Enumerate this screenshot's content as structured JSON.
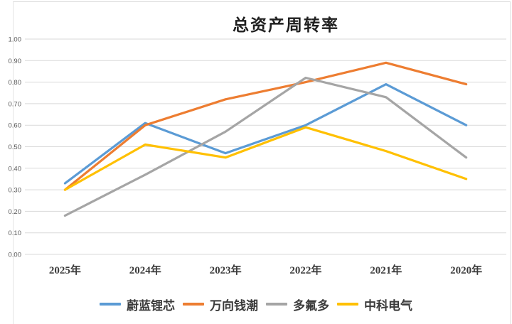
{
  "chart": {
    "title": "总资产周转率",
    "legend_position": "bottom"
  },
  "chart_data": {
    "type": "line",
    "title": "总资产周转率",
    "xlabel": "",
    "ylabel": "",
    "categories": [
      "2025年",
      "2024年",
      "2023年",
      "2022年",
      "2021年",
      "2020年"
    ],
    "series": [
      {
        "name": "蔚蓝锂芯",
        "color": "#5B9BD5",
        "values": [
          0.33,
          0.61,
          0.47,
          0.6,
          0.79,
          0.6
        ]
      },
      {
        "name": "万向钱潮",
        "color": "#ED7D31",
        "values": [
          0.3,
          0.6,
          0.72,
          0.8,
          0.89,
          0.79
        ]
      },
      {
        "name": "多氟多",
        "color": "#A5A5A5",
        "values": [
          0.18,
          0.37,
          0.57,
          0.82,
          0.73,
          0.45
        ]
      },
      {
        "name": "中科电气",
        "color": "#FFC000",
        "values": [
          0.3,
          0.51,
          0.45,
          0.59,
          0.48,
          0.35
        ]
      }
    ],
    "ylim": [
      0.0,
      1.0
    ],
    "ytick_step": 0.1,
    "ytick_labels": [
      "0.00",
      "0.10",
      "0.20",
      "0.30",
      "0.40",
      "0.50",
      "0.60",
      "0.70",
      "0.80",
      "0.90",
      "1.00"
    ],
    "grid": true,
    "legend_position": "bottom",
    "gridline_color": "#D9D9D9"
  }
}
